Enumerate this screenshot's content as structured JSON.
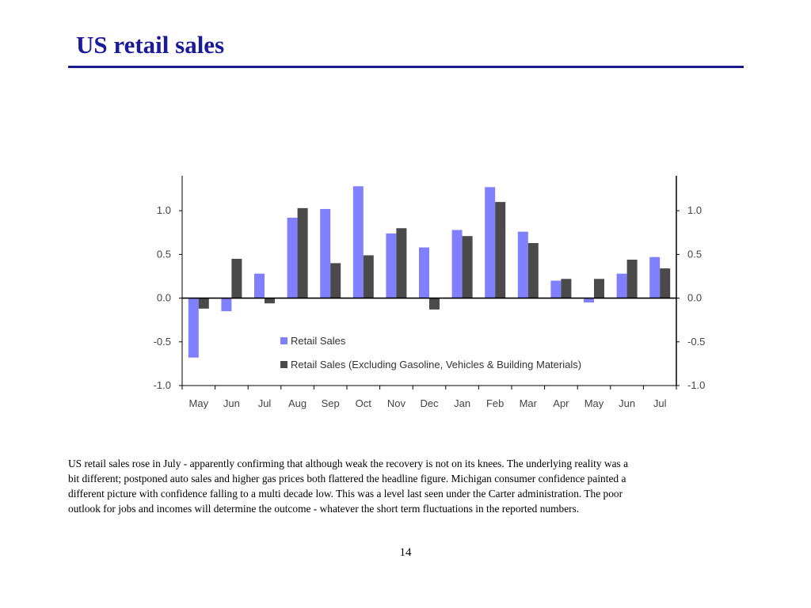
{
  "slide": {
    "title": "US retail sales",
    "caption": "US retail sales rose in July - apparently confirming that although weak the recovery is not on its knees. The underlying reality was a bit different; postponed auto sales and higher gas prices both flattered the headline figure. Michigan consumer confidence painted a different picture with confidence falling to a multi decade low. This was a level last seen under the Carter  administration. The poor outlook for jobs and incomes will determine the outcome  - whatever the short term fluctuations in the reported numbers.",
    "page_number": "14"
  },
  "chart_data": {
    "type": "bar",
    "title": "",
    "xlabel": "",
    "ylabel": "",
    "categories": [
      "May",
      "Jun",
      "Jul",
      "Aug",
      "Sep",
      "Oct",
      "Nov",
      "Dec",
      "Jan",
      "Feb",
      "Mar",
      "Apr",
      "May",
      "Jun",
      "Jul"
    ],
    "series": [
      {
        "name": "Retail Sales",
        "color": "#8080ff",
        "values": [
          -0.68,
          -0.15,
          0.28,
          0.92,
          1.02,
          1.28,
          0.74,
          0.58,
          0.78,
          1.27,
          0.76,
          0.2,
          -0.05,
          0.28,
          0.47
        ]
      },
      {
        "name": "Retail Sales (Excluding Gasoline, Vehicles & Building Materials)",
        "color": "#4a4a4a",
        "values": [
          -0.12,
          0.45,
          -0.06,
          1.03,
          0.4,
          0.49,
          0.8,
          -0.13,
          0.71,
          1.1,
          0.63,
          0.22,
          0.22,
          0.44,
          0.34
        ]
      }
    ],
    "ylim": [
      -1.0,
      1.4
    ],
    "yticks": [
      "1.0",
      "0.5",
      "0.0",
      "-0.5",
      "-1.0"
    ],
    "ytick_values": [
      1.0,
      0.5,
      0.0,
      -0.5,
      -1.0
    ],
    "secondary_axis": true,
    "grid": false,
    "legend_position": "bottom-center"
  }
}
